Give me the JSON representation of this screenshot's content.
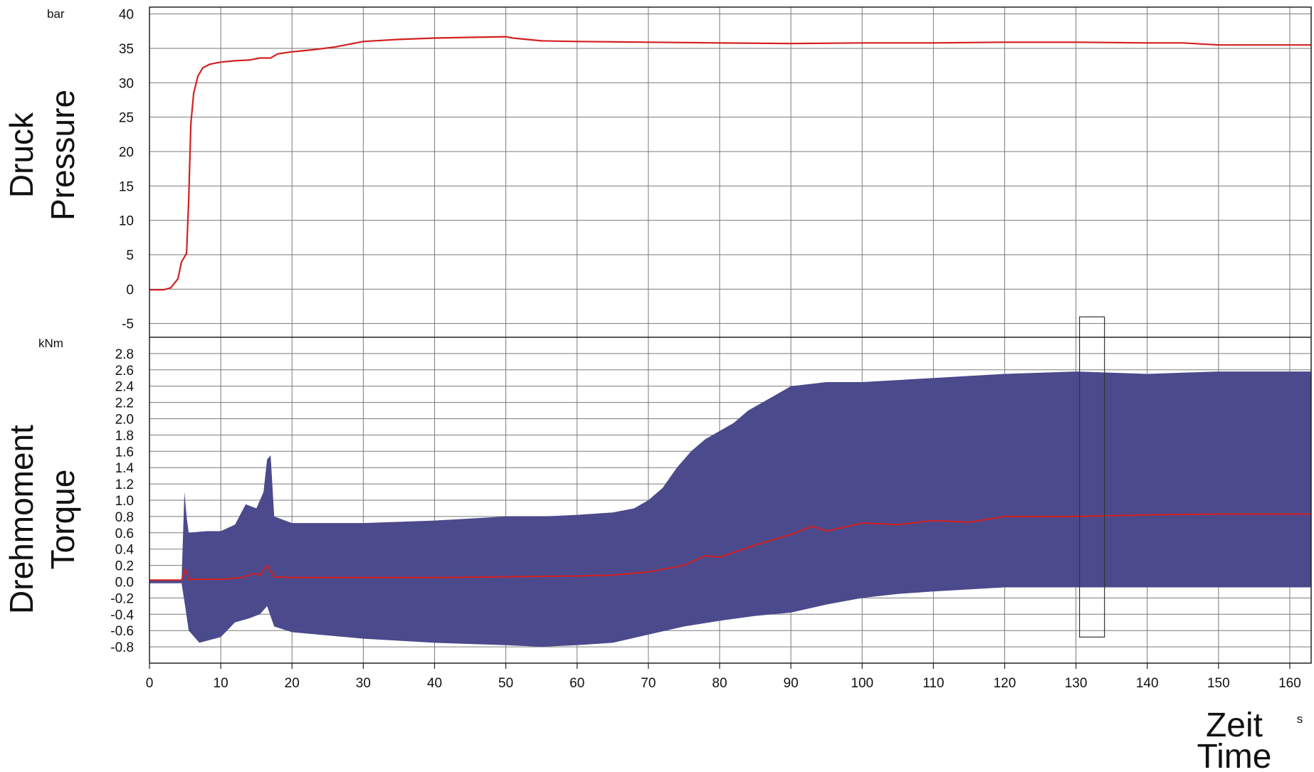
{
  "chart_data": [
    {
      "type": "line",
      "title": [
        "Druck",
        "Pressure"
      ],
      "unit": "bar",
      "ylim": [
        -7,
        41
      ],
      "yticks": [
        40,
        35,
        30,
        25,
        20,
        15,
        10,
        5,
        0,
        -5
      ],
      "xlim": [
        0,
        163
      ],
      "xticks": [
        0,
        10,
        20,
        30,
        40,
        50,
        60,
        70,
        80,
        90,
        100,
        110,
        120,
        130,
        140,
        150,
        160
      ],
      "grid": true,
      "line_color": "#d42020",
      "series": [
        {
          "x": [
            0,
            2,
            3,
            4,
            4.5,
            4.8,
            5.2,
            5.5,
            5.8,
            6.2,
            6.8,
            7.5,
            8.5,
            10,
            12,
            14,
            15.5,
            17,
            18,
            20,
            23,
            26,
            30,
            35,
            40,
            45,
            50,
            51,
            55,
            60,
            70,
            80,
            90,
            100,
            110,
            120,
            130,
            140,
            145,
            150,
            155,
            160,
            163
          ],
          "y": [
            -0.1,
            -0.1,
            0.2,
            1.5,
            4,
            4.5,
            5.2,
            13,
            24,
            28.5,
            31,
            32.2,
            32.7,
            33,
            33.2,
            33.3,
            33.6,
            33.6,
            34.2,
            34.5,
            34.8,
            35.2,
            36,
            36.3,
            36.5,
            36.6,
            36.7,
            36.5,
            36.1,
            36,
            35.9,
            35.8,
            35.7,
            35.8,
            35.8,
            35.9,
            35.9,
            35.8,
            35.8,
            35.5,
            35.5,
            35.5,
            35.5
          ]
        }
      ]
    },
    {
      "type": "line",
      "title": [
        "Drehmoment",
        "Torque"
      ],
      "unit": "kNm",
      "ylim": [
        -1.0,
        3.0
      ],
      "yticks": [
        2.8,
        2.6,
        2.4,
        2.2,
        2.0,
        1.8,
        1.6,
        1.4,
        1.2,
        1.0,
        0.8,
        0.6,
        0.4,
        0.2,
        0.0,
        -0.2,
        -0.4,
        -0.6,
        -0.8
      ],
      "ytick_labels": [
        "2.8",
        "2.6",
        "2.4",
        "2.2",
        "2.0",
        "1.8",
        "1.6",
        "1.4",
        "1.2",
        "1.0",
        "0.8",
        "0.6",
        "0.4",
        "0.2",
        "0.0",
        "-0.2",
        "-0.4",
        "-0.6",
        "-0.8"
      ],
      "xlim": [
        0,
        163
      ],
      "xticks": [
        0,
        10,
        20,
        30,
        40,
        50,
        60,
        70,
        80,
        90,
        100,
        110,
        120,
        130,
        140,
        150,
        160
      ],
      "xtick_labels": [
        "0",
        "10",
        "20",
        "30",
        "40",
        "50",
        "60",
        "70",
        "80",
        "90",
        "100",
        "110",
        "120",
        "130",
        "140",
        "150",
        "160"
      ],
      "grid": true,
      "band_color": "#4b4a8c",
      "mean_color": "#d42020",
      "highlight_box": {
        "x": [
          130.5,
          134
        ],
        "y": [
          -0.68,
          3.25
        ]
      },
      "series": [
        {
          "name": "envelope-max",
          "x": [
            0,
            4.5,
            4.9,
            5.2,
            5.5,
            8,
            10,
            12,
            13.5,
            15,
            16,
            16.5,
            17,
            17.5,
            20,
            30,
            40,
            50,
            55,
            60,
            65,
            68,
            70,
            72,
            74,
            76,
            78,
            80,
            82,
            84,
            86,
            88,
            90,
            95,
            100,
            110,
            120,
            130,
            140,
            150,
            160,
            163
          ],
          "y": [
            0.02,
            0.02,
            1.1,
            0.8,
            0.6,
            0.62,
            0.62,
            0.7,
            0.95,
            0.9,
            1.1,
            1.5,
            1.55,
            0.8,
            0.72,
            0.72,
            0.75,
            0.8,
            0.8,
            0.82,
            0.85,
            0.9,
            1.0,
            1.15,
            1.4,
            1.6,
            1.75,
            1.85,
            1.95,
            2.1,
            2.2,
            2.3,
            2.4,
            2.45,
            2.45,
            2.5,
            2.55,
            2.58,
            2.55,
            2.58,
            2.58,
            2.58
          ]
        },
        {
          "name": "envelope-min",
          "x": [
            0,
            4.5,
            5,
            5.5,
            7,
            10,
            12,
            14,
            15.5,
            16.5,
            17.5,
            20,
            30,
            40,
            50,
            55,
            60,
            65,
            70,
            75,
            80,
            85,
            90,
            95,
            100,
            105,
            110,
            120,
            130,
            140,
            150,
            160,
            163
          ],
          "y": [
            -0.02,
            -0.02,
            -0.3,
            -0.6,
            -0.75,
            -0.68,
            -0.5,
            -0.45,
            -0.4,
            -0.3,
            -0.55,
            -0.62,
            -0.7,
            -0.75,
            -0.78,
            -0.8,
            -0.78,
            -0.75,
            -0.65,
            -0.55,
            -0.48,
            -0.42,
            -0.38,
            -0.28,
            -0.2,
            -0.15,
            -0.12,
            -0.07,
            -0.07,
            -0.07,
            -0.07,
            -0.07,
            -0.07
          ]
        },
        {
          "name": "mean",
          "x": [
            0,
            4.5,
            5,
            5.5,
            10,
            13,
            14.5,
            15.5,
            16.5,
            17.5,
            20,
            30,
            40,
            50,
            60,
            65,
            70,
            75,
            78,
            80,
            85,
            90,
            93,
            95,
            100,
            105,
            110,
            115,
            120,
            130,
            140,
            150,
            160,
            163
          ],
          "y": [
            0.02,
            0.02,
            0.15,
            0.03,
            0.03,
            0.05,
            0.1,
            0.08,
            0.2,
            0.06,
            0.05,
            0.05,
            0.05,
            0.06,
            0.07,
            0.08,
            0.12,
            0.2,
            0.32,
            0.3,
            0.45,
            0.58,
            0.68,
            0.62,
            0.72,
            0.7,
            0.75,
            0.73,
            0.8,
            0.8,
            0.82,
            0.83,
            0.83,
            0.83
          ]
        }
      ]
    }
  ],
  "xaxis": {
    "title": [
      "Zeit",
      "Time"
    ],
    "unit": "s"
  }
}
